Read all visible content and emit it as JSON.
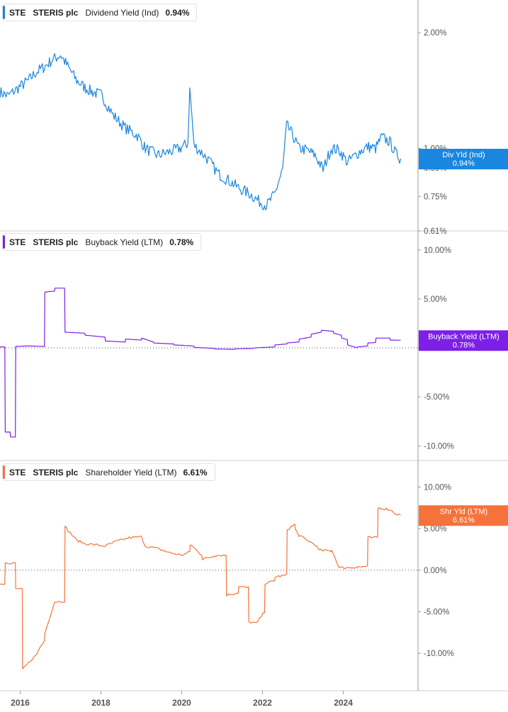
{
  "chart_data": [
    {
      "type": "line",
      "ticker": "STE",
      "company": "STERIS plc",
      "metric": "Dividend Yield (Ind)",
      "current": "0.94%",
      "badge_label": "Div Yld (Ind)",
      "badge_value": "0.94%",
      "color": "#1a86e0",
      "y_scale": "log",
      "ylim": [
        0.61,
        2.35
      ],
      "y_ticks": [
        {
          "v": 2.0,
          "label": "2.00%"
        },
        {
          "v": 1.0,
          "label": "1.00%"
        },
        {
          "v": 0.89,
          "label": "0.89%"
        },
        {
          "v": 0.75,
          "label": "0.75%"
        },
        {
          "v": 0.61,
          "label": "0.61%"
        }
      ],
      "zero_line": false,
      "step": false,
      "noise": 0.035,
      "x": [
        2015.5,
        2015.7,
        2016.0,
        2016.2,
        2016.4,
        2016.6,
        2016.8,
        2017.0,
        2017.2,
        2017.4,
        2017.6,
        2017.8,
        2018.0,
        2018.3,
        2018.6,
        2018.9,
        2019.1,
        2019.4,
        2019.7,
        2019.95,
        2020.15,
        2020.2,
        2020.3,
        2020.6,
        2020.9,
        2021.2,
        2021.4,
        2021.7,
        2021.9,
        2022.1,
        2022.3,
        2022.5,
        2022.6,
        2022.75,
        2022.9,
        2023.1,
        2023.3,
        2023.5,
        2023.7,
        2023.9,
        2024.1,
        2024.4,
        2024.6,
        2024.8,
        2024.95,
        2025.15,
        2025.3,
        2025.42
      ],
      "y": [
        1.4,
        1.37,
        1.45,
        1.5,
        1.58,
        1.63,
        1.7,
        1.75,
        1.62,
        1.5,
        1.44,
        1.4,
        1.38,
        1.22,
        1.13,
        1.08,
        1.0,
        0.96,
        0.98,
        1.0,
        1.03,
        1.42,
        1.02,
        0.95,
        0.86,
        0.82,
        0.79,
        0.76,
        0.73,
        0.71,
        0.76,
        0.88,
        1.15,
        1.08,
        1.0,
        0.99,
        0.96,
        0.88,
        1.0,
        0.99,
        0.92,
        0.98,
        1.01,
        1.0,
        1.07,
        1.04,
        0.97,
        0.94
      ]
    },
    {
      "type": "line",
      "ticker": "STE",
      "company": "STERIS plc",
      "metric": "Buyback Yield (LTM)",
      "current": "0.78%",
      "badge_label": "Buyback Yield (LTM)",
      "badge_value": "0.78%",
      "color": "#7d1fe6",
      "y_scale": "linear",
      "ylim": [
        -11.5,
        11.0
      ],
      "y_ticks": [
        {
          "v": 10,
          "label": "10.00%"
        },
        {
          "v": 5,
          "label": "5.00%"
        },
        {
          "v": 0,
          "label": "0.00%"
        },
        {
          "v": -5,
          "label": "-5.00%"
        },
        {
          "v": -10,
          "label": "-10.00%"
        }
      ],
      "zero_line": true,
      "step": true,
      "noise": 0,
      "x": [
        2015.5,
        2015.62,
        2015.63,
        2015.75,
        2015.76,
        2015.88,
        2015.89,
        2016.2,
        2016.6,
        2016.61,
        2016.85,
        2016.86,
        2017.1,
        2017.11,
        2017.6,
        2017.61,
        2018.1,
        2018.11,
        2018.6,
        2018.61,
        2019.0,
        2019.01,
        2019.3,
        2019.31,
        2019.8,
        2019.81,
        2020.3,
        2020.31,
        2020.8,
        2020.81,
        2021.3,
        2021.31,
        2021.8,
        2021.81,
        2022.3,
        2022.31,
        2022.6,
        2022.61,
        2022.9,
        2022.91,
        2023.2,
        2023.21,
        2023.45,
        2023.46,
        2023.75,
        2023.76,
        2023.95,
        2023.96,
        2024.1,
        2024.11,
        2024.35,
        2024.36,
        2024.6,
        2024.61,
        2024.8,
        2024.81,
        2025.15,
        2025.16,
        2025.42
      ],
      "y": [
        0.1,
        0.1,
        -8.6,
        -8.6,
        -9.1,
        -9.1,
        0.15,
        0.2,
        0.15,
        5.7,
        5.8,
        6.1,
        6.1,
        1.6,
        1.5,
        1.3,
        1.1,
        0.7,
        0.6,
        0.9,
        0.8,
        1.0,
        0.6,
        0.5,
        0.4,
        0.3,
        0.2,
        0.05,
        -0.05,
        -0.1,
        -0.15,
        -0.1,
        -0.05,
        0.0,
        0.1,
        0.3,
        0.4,
        0.5,
        0.6,
        0.9,
        1.1,
        1.4,
        1.6,
        1.8,
        1.7,
        1.5,
        1.3,
        1.0,
        0.85,
        0.3,
        0.0,
        0.1,
        0.2,
        0.5,
        0.55,
        1.0,
        1.0,
        0.8,
        0.78
      ]
    },
    {
      "type": "line",
      "ticker": "STE",
      "company": "STERIS plc",
      "metric": "Shareholder Yield (LTM)",
      "current": "6.61%",
      "badge_label": "Shr Yld (LTM)",
      "badge_value": "6.61%",
      "color": "#f5733a",
      "y_scale": "linear",
      "ylim": [
        -14.5,
        12.0
      ],
      "y_ticks": [
        {
          "v": 10,
          "label": "10.00%"
        },
        {
          "v": 5,
          "label": "5.00%"
        },
        {
          "v": 0,
          "label": "0.00%"
        },
        {
          "v": -5,
          "label": "-5.00%"
        },
        {
          "v": -10,
          "label": "-10.00%"
        }
      ],
      "zero_line": true,
      "step": true,
      "noise": 0.15,
      "x": [
        2015.5,
        2015.62,
        2015.63,
        2015.88,
        2015.89,
        2016.05,
        2016.06,
        2016.3,
        2016.6,
        2016.61,
        2016.85,
        2016.86,
        2017.1,
        2017.11,
        2017.4,
        2017.6,
        2018.1,
        2018.4,
        2018.7,
        2019.0,
        2019.1,
        2019.4,
        2019.7,
        2020.0,
        2020.2,
        2020.21,
        2020.5,
        2020.51,
        2020.8,
        2020.81,
        2021.1,
        2021.11,
        2021.4,
        2021.41,
        2021.65,
        2021.66,
        2021.85,
        2022.05,
        2022.06,
        2022.3,
        2022.31,
        2022.6,
        2022.61,
        2022.8,
        2022.81,
        2022.9,
        2023.1,
        2023.3,
        2023.4,
        2023.7,
        2023.71,
        2023.9,
        2024.1,
        2024.4,
        2024.45,
        2024.6,
        2024.61,
        2024.85,
        2024.86,
        2025.15,
        2025.3,
        2025.42
      ],
      "y": [
        -1.7,
        -1.6,
        0.9,
        0.9,
        -2.3,
        -2.2,
        -11.9,
        -10.8,
        -8.5,
        -7.6,
        -3.8,
        -3.8,
        -3.7,
        5.2,
        3.6,
        3.2,
        2.9,
        3.5,
        3.9,
        4.0,
        2.9,
        2.6,
        2.1,
        1.8,
        2.2,
        3.1,
        1.8,
        1.3,
        1.7,
        1.8,
        1.8,
        -3.0,
        -2.7,
        -2.0,
        -2.1,
        -6.2,
        -6.4,
        -5.0,
        -1.6,
        -1.3,
        -0.8,
        -0.6,
        4.9,
        5.5,
        4.9,
        4.2,
        3.6,
        3.1,
        2.4,
        2.3,
        2.5,
        0.3,
        0.3,
        0.4,
        0.4,
        0.5,
        3.9,
        3.9,
        7.5,
        7.3,
        6.8,
        6.61
      ]
    }
  ],
  "x_axis": {
    "xlim": [
      2015.5,
      2025.85
    ],
    "ticks": [
      {
        "v": 2016,
        "label": "2016"
      },
      {
        "v": 2018,
        "label": "2018"
      },
      {
        "v": 2020,
        "label": "2020"
      },
      {
        "v": 2022,
        "label": "2022"
      },
      {
        "v": 2024,
        "label": "2024"
      }
    ]
  }
}
